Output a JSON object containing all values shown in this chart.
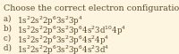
{
  "title": "Choose the correct electron configuration for Se.",
  "options": [
    {
      "label": "a)  ",
      "text": "1s$^2$2s$^2$2p$^6$3s$^2$3p$^4$"
    },
    {
      "label": "b)  ",
      "text": "1s$^2$2s$^2$2p$^6$3s$^2$3p$^6$4s$^2$3d$^{10}$4p$^4$"
    },
    {
      "label": "c)  ",
      "text": "1s$^2$2s$^2$2p$^6$3s$^2$3p$^6$4s$^2$4p$^4$"
    },
    {
      "label": "d)  ",
      "text": "1s$^2$2s$^2$2p$^6$3s$^2$3p$^6$4s$^2$3d$^4$"
    }
  ],
  "bg_color": "#fdf5e0",
  "text_color": "#5a4a2a",
  "title_fontsize": 6.8,
  "label_fontsize": 6.2,
  "option_fontsize": 6.2,
  "fig_width": 2.0,
  "fig_height": 0.61,
  "dpi": 100
}
